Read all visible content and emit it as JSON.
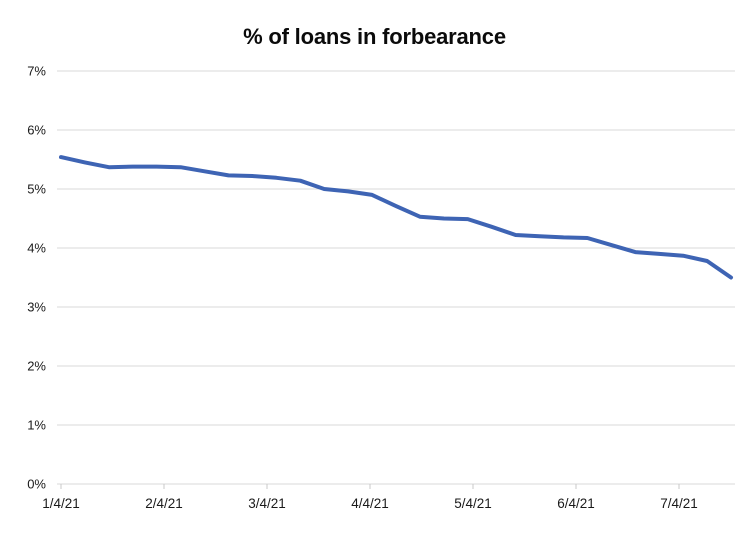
{
  "chart_data": {
    "type": "line",
    "title": "% of loans in forbearance",
    "x": [
      "1/4/21",
      "1/11/21",
      "1/18/21",
      "1/25/21",
      "2/1/21",
      "2/8/21",
      "2/15/21",
      "2/22/21",
      "3/1/21",
      "3/8/21",
      "3/15/21",
      "3/22/21",
      "3/29/21",
      "4/5/21",
      "4/12/21",
      "4/19/21",
      "4/26/21",
      "5/3/21",
      "5/10/21",
      "5/17/21",
      "5/24/21",
      "5/31/21",
      "6/7/21",
      "6/14/21",
      "6/21/21",
      "6/28/21",
      "7/5/21",
      "7/12/21",
      "7/19/21"
    ],
    "series": [
      {
        "name": "% of loans in forbearance",
        "values": [
          5.54,
          5.45,
          5.37,
          5.38,
          5.38,
          5.37,
          5.3,
          5.23,
          5.22,
          5.19,
          5.14,
          5.0,
          4.96,
          4.9,
          4.71,
          4.53,
          4.5,
          4.49,
          4.36,
          4.22,
          4.2,
          4.18,
          4.17,
          4.05,
          3.93,
          3.9,
          3.87,
          3.78,
          3.5
        ]
      }
    ],
    "xlabel": "",
    "ylabel": "",
    "ylim": [
      0,
      7
    ],
    "y_tick_labels": [
      "0%",
      "1%",
      "2%",
      "3%",
      "4%",
      "5%",
      "6%",
      "7%"
    ],
    "x_tick_labels": [
      "1/4/21",
      "2/4/21",
      "3/4/21",
      "4/4/21",
      "5/4/21",
      "6/4/21",
      "7/4/21"
    ],
    "grid": "horizontal-only",
    "legend": "none"
  },
  "colors": {
    "line": "#3E64B4",
    "grid": "#D9D9D9",
    "tick": "#C9C9C9",
    "text": "#1A1A1A",
    "title": "#0B0B0B",
    "background": "#FFFFFF"
  }
}
